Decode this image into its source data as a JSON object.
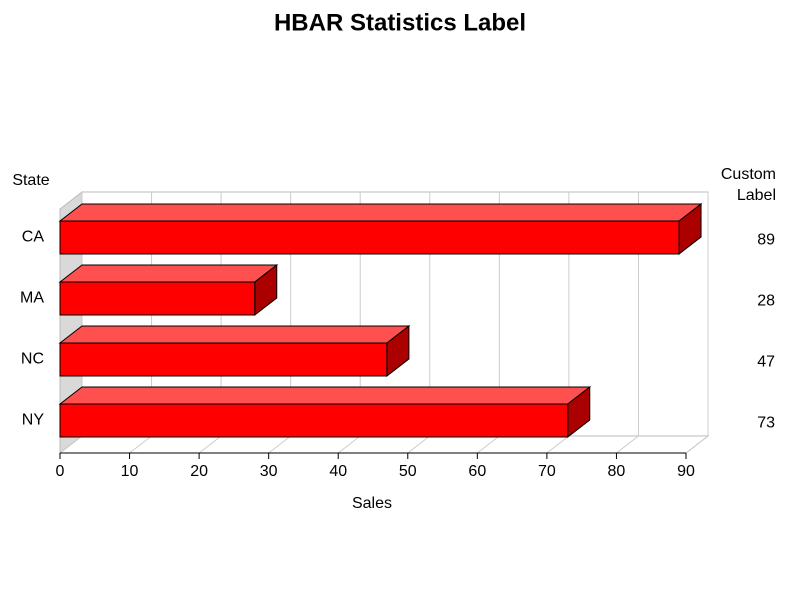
{
  "chart_data": {
    "type": "hbar3d",
    "title": "HBAR Statistics Label",
    "y_label": "State",
    "x_label": "Sales",
    "stat_label": "Custom Label",
    "categories": [
      "CA",
      "MA",
      "NC",
      "NY"
    ],
    "values": [
      89,
      28,
      47,
      73
    ],
    "color": "#ff0000",
    "top_color": "#ff5050",
    "side_color": "#aa0000",
    "xlim": [
      0,
      90
    ],
    "xticks": [
      0,
      10,
      20,
      30,
      40,
      50,
      60,
      70,
      80,
      90
    ],
    "grid": true
  }
}
